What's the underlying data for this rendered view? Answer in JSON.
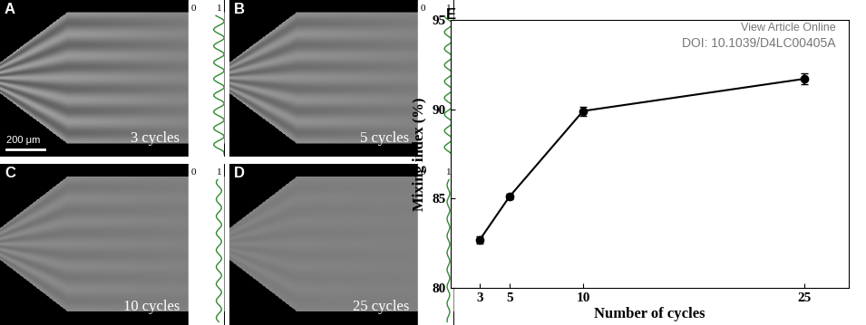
{
  "panel_labels": [
    "A",
    "B",
    "C",
    "D",
    "E"
  ],
  "images": [
    {
      "label": "3 cycles"
    },
    {
      "label": "5 cycles"
    },
    {
      "label": "10 cycles"
    },
    {
      "label": "25 cycles"
    }
  ],
  "scale_bar": "200 μm",
  "profile_axis": [
    0,
    1
  ],
  "watermark": [
    "View Article Online",
    "DOI: 10.1039/D4LC00405A"
  ],
  "chart_data": {
    "type": "line",
    "x": [
      3,
      5,
      10,
      25
    ],
    "values": [
      82.7,
      85.1,
      89.9,
      91.7
    ],
    "errors": [
      0.2,
      0.15,
      0.25,
      0.3
    ],
    "x_label": "Number of cycles",
    "y_label": "Mixing index (%)",
    "xlim": [
      1,
      28
    ],
    "ylim": [
      80,
      95
    ],
    "xticks": [
      3,
      5,
      10,
      25
    ],
    "yticks": [
      80,
      85,
      90,
      95
    ],
    "color": "#000000",
    "marker": "circle",
    "line_style": "solid"
  }
}
